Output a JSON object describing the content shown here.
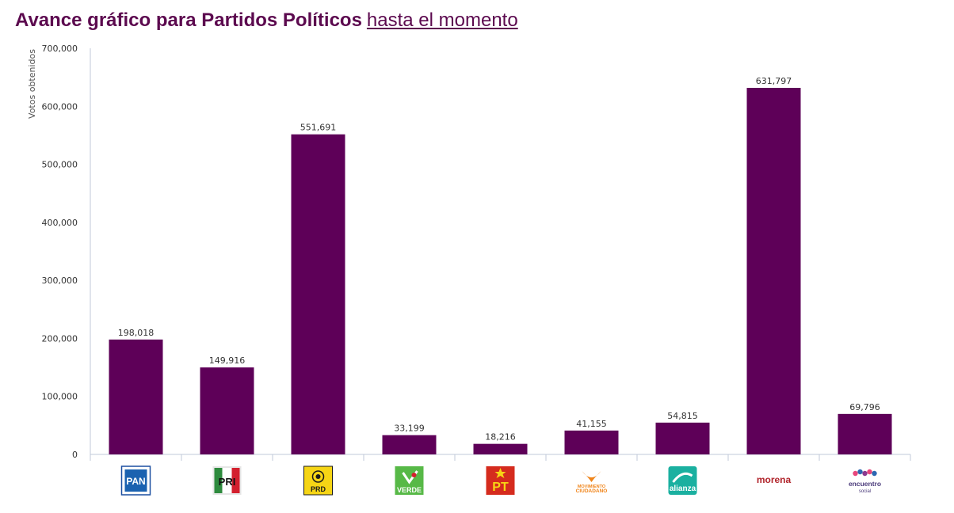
{
  "header": {
    "title_main": "Avance gráfico para Partidos Políticos",
    "title_link": "hasta el momento"
  },
  "colors": {
    "bar": "#5e0058",
    "title": "#5c0a4f",
    "axis": "#c0c8d8"
  },
  "chart_data": {
    "type": "bar",
    "ylabel": "Votos obtenidos",
    "ylim": [
      0,
      700000
    ],
    "yticks": [
      "0",
      "100,000",
      "200,000",
      "300,000",
      "400,000",
      "500,000",
      "600,000",
      "700,000"
    ],
    "categories": [
      "PAN",
      "PRI",
      "PRD",
      "VERDE",
      "PT",
      "MOVIMIENTO CIUDADANO",
      "NUEVA ALIANZA",
      "morena",
      "encuentro social"
    ],
    "values": [
      198018,
      149916,
      551691,
      33199,
      18216,
      41155,
      54815,
      631797,
      69796
    ],
    "value_labels": [
      "198,018",
      "149,916",
      "551,691",
      "33,199",
      "18,216",
      "41,155",
      "54,815",
      "631,797",
      "69,796"
    ],
    "grid": false,
    "legend": "none"
  },
  "logos": [
    {
      "icon": "pan-logo",
      "text": "PAN"
    },
    {
      "icon": "pri-logo",
      "text": "PRI"
    },
    {
      "icon": "prd-logo",
      "text": "PRD"
    },
    {
      "icon": "verde-logo",
      "text": "VERDE"
    },
    {
      "icon": "pt-logo",
      "text": "PT"
    },
    {
      "icon": "movimiento-ciudadano-logo",
      "text": "MOVIMIENTO",
      "text2": "CIUDADANO"
    },
    {
      "icon": "nueva-alianza-logo",
      "text": "alianza",
      "text2": "NUEVA"
    },
    {
      "icon": "morena-logo",
      "text": "morena"
    },
    {
      "icon": "encuentro-social-logo",
      "text": "encuentro",
      "text2": "social"
    }
  ]
}
